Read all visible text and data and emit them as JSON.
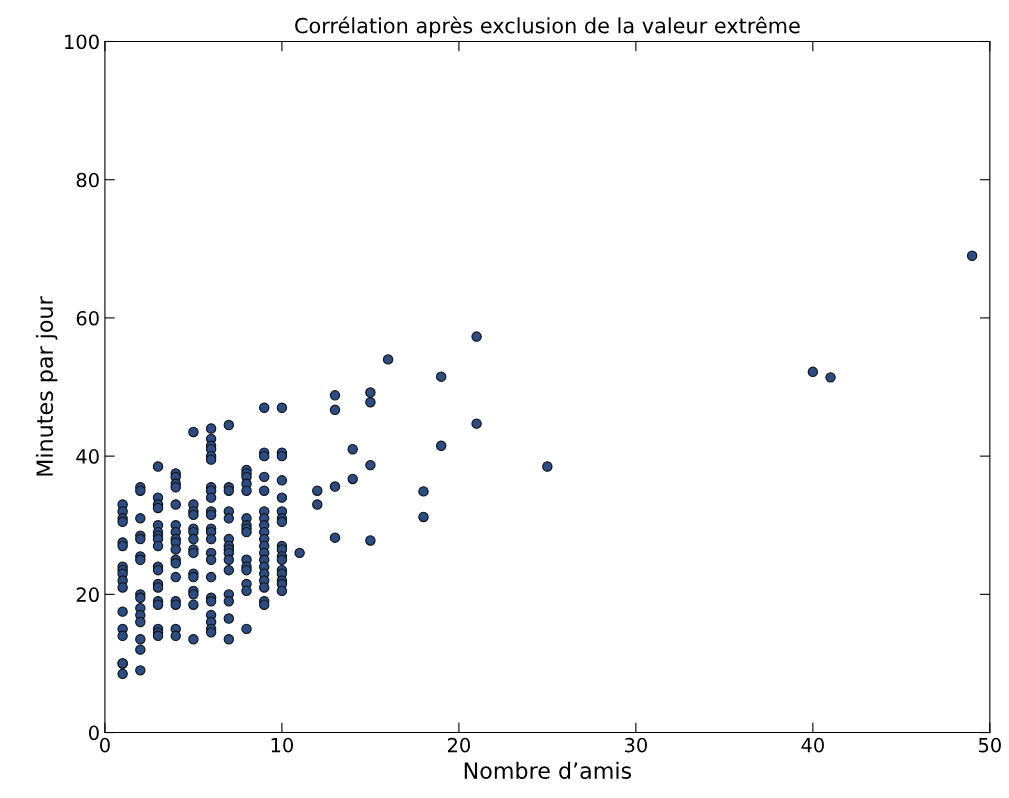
{
  "chart_data": {
    "type": "scatter",
    "title": "Corrélation après exclusion de la valeur extrême",
    "xlabel": "Nombre d’amis",
    "ylabel": "Minutes par jour",
    "x": [
      1,
      1,
      1,
      1,
      1,
      1,
      1,
      1,
      1,
      1,
      1,
      1,
      1,
      1,
      1,
      1,
      1,
      2,
      2,
      2,
      2,
      2,
      2,
      2,
      2,
      2,
      2,
      2,
      2,
      2,
      2,
      2,
      3,
      3,
      3,
      3,
      3,
      3,
      3,
      3,
      3,
      3,
      3,
      3,
      3,
      3,
      3,
      3,
      3,
      3,
      4,
      4,
      4,
      4,
      4,
      4,
      4,
      4,
      4,
      4,
      4,
      4,
      4,
      4,
      4,
      4,
      4,
      5,
      5,
      5,
      5,
      5,
      5,
      5,
      5,
      5,
      5,
      5,
      5,
      5,
      5,
      5,
      6,
      6,
      6,
      6,
      6,
      6,
      6,
      6,
      6,
      6,
      6,
      6,
      6,
      6,
      6,
      6,
      6,
      6,
      6,
      6,
      6,
      6,
      6,
      7,
      7,
      7,
      7,
      7,
      7,
      7,
      7,
      7,
      7,
      7,
      7,
      7,
      7,
      7,
      8,
      8,
      8,
      8,
      8,
      8,
      8,
      8,
      8,
      8,
      8,
      8,
      8,
      8,
      8,
      9,
      9,
      9,
      9,
      9,
      9,
      9,
      9,
      9,
      9,
      9,
      9,
      9,
      9,
      9,
      9,
      9,
      9,
      9,
      10,
      10,
      10,
      10,
      10,
      10,
      10,
      10,
      10,
      10,
      10,
      10,
      10,
      10,
      10,
      10,
      10,
      11,
      12,
      12,
      13,
      13,
      13,
      13,
      14,
      14,
      15,
      15,
      15,
      15,
      16,
      18,
      18,
      19,
      19,
      21,
      21,
      25,
      40,
      41,
      49
    ],
    "values": [
      33,
      32,
      31,
      30.5,
      27.5,
      27,
      24,
      23.5,
      23,
      22,
      21,
      17.5,
      15,
      14,
      10,
      10,
      8.5,
      35.5,
      35,
      31,
      28.5,
      28,
      25.5,
      25,
      20,
      19.5,
      18,
      17,
      16,
      13.5,
      12,
      9,
      38.5,
      34,
      33,
      32.5,
      30,
      29,
      28.5,
      28,
      27,
      24,
      23.5,
      21.5,
      21,
      19,
      18.5,
      15,
      14.5,
      14,
      37.5,
      37,
      36,
      35.5,
      33,
      30,
      29,
      28,
      27.5,
      26.5,
      25,
      24.5,
      22.5,
      19,
      18.5,
      15,
      14,
      43.5,
      33,
      32,
      31.5,
      29.5,
      29,
      28,
      26.5,
      26,
      23,
      22.5,
      20.5,
      20,
      18.5,
      13.5,
      44,
      42.5,
      41.5,
      41,
      40,
      39.5,
      35.5,
      35,
      34,
      32,
      31.5,
      29.5,
      29,
      28,
      26,
      25,
      22.5,
      19.5,
      19,
      17,
      16,
      15,
      14.5,
      44.5,
      35.5,
      35,
      32,
      31,
      28,
      27,
      26.5,
      26,
      25,
      23.5,
      20,
      19,
      16.5,
      13.5,
      38,
      37.5,
      37,
      36,
      35,
      31,
      30,
      29.5,
      29,
      25,
      24,
      23.5,
      21.5,
      20.5,
      15,
      47,
      40.5,
      40,
      37,
      35,
      32,
      31,
      30,
      29,
      28,
      27,
      26,
      25,
      24,
      23,
      22,
      21,
      19,
      18.5,
      47,
      40.5,
      40,
      36.5,
      34,
      32,
      31,
      30.5,
      27,
      26.5,
      25.5,
      25,
      23.5,
      23,
      22,
      21.5,
      20.5,
      26,
      35,
      33,
      48.8,
      46.7,
      35.6,
      28.2,
      41,
      36.7,
      49.2,
      47.8,
      38.7,
      27.8,
      54,
      34.9,
      31.2,
      51.5,
      41.5,
      57.3,
      44.7,
      38.5,
      52.2,
      51.4,
      69
    ],
    "color": "#2b4d85",
    "marker": "circle",
    "xlim": [
      0,
      50
    ],
    "xticks": [
      0,
      10,
      20,
      30,
      40,
      50
    ],
    "ylim": [
      0,
      100
    ],
    "yticks": [
      0,
      20,
      40,
      60,
      80,
      100
    ],
    "grid": false,
    "legend": false
  }
}
